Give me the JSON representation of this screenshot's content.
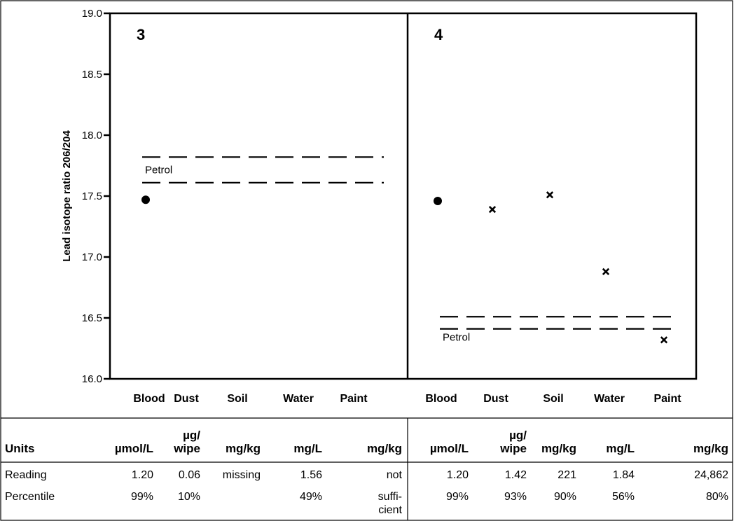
{
  "chart_data": {
    "type": "scatter",
    "ylabel": "Lead isotope ratio 206/204",
    "ylim": [
      16.0,
      19.0
    ],
    "yticks": [
      "19.0",
      "18.5",
      "18.0",
      "17.5",
      "17.0",
      "16.5",
      "16.0"
    ],
    "categories": [
      "Blood",
      "Dust",
      "Soil",
      "Water",
      "Paint"
    ],
    "panels": [
      {
        "label": "3",
        "petrol_label": "Petrol",
        "petrol_band": [
          17.61,
          17.82
        ],
        "points": [
          {
            "category": "Blood",
            "value": 17.47,
            "marker": "circle"
          }
        ]
      },
      {
        "label": "4",
        "petrol_label": "Petrol",
        "petrol_band": [
          16.41,
          16.51
        ],
        "points": [
          {
            "category": "Blood",
            "value": 17.46,
            "marker": "circle"
          },
          {
            "category": "Dust",
            "value": 17.39,
            "marker": "cross"
          },
          {
            "category": "Soil",
            "value": 17.51,
            "marker": "cross"
          },
          {
            "category": "Water",
            "value": 16.88,
            "marker": "cross"
          },
          {
            "category": "Paint",
            "value": 16.32,
            "marker": "cross"
          }
        ]
      }
    ]
  },
  "table": {
    "row_labels": [
      "Units",
      "Reading",
      "Percentile"
    ],
    "panels": [
      {
        "units": [
          [
            "µmol/L"
          ],
          [
            "µg/",
            "wipe"
          ],
          [
            "mg/kg"
          ],
          [
            "mg/L"
          ],
          [
            "mg/kg"
          ]
        ],
        "reading": [
          "1.20",
          "0.06",
          "missing",
          "1.56",
          "not"
        ],
        "percentile": [
          [
            "99%"
          ],
          [
            "10%"
          ],
          [
            ""
          ],
          [
            "49%"
          ],
          [
            "suffi-",
            "cient"
          ]
        ]
      },
      {
        "units": [
          [
            "µmol/L"
          ],
          [
            "µg/",
            "wipe"
          ],
          [
            "mg/kg"
          ],
          [
            "mg/L"
          ],
          [
            "mg/kg"
          ]
        ],
        "reading": [
          "1.20",
          "1.42",
          "221",
          "1.84",
          "24,862"
        ],
        "percentile": [
          [
            "99%"
          ],
          [
            "93%"
          ],
          [
            "90%"
          ],
          [
            "56%"
          ],
          [
            "80%"
          ]
        ]
      }
    ]
  }
}
